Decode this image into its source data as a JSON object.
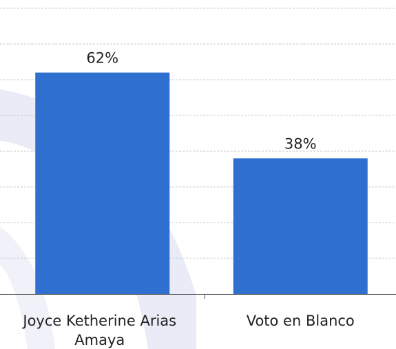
{
  "chart_data": {
    "type": "bar",
    "categories": [
      "Joyce Ketherine Arias Amaya",
      "Voto en Blanco"
    ],
    "category_lines": [
      [
        "Joyce Ketherine Arias",
        "Amaya"
      ],
      [
        "Voto en Blanco"
      ]
    ],
    "values": [
      62,
      38
    ],
    "value_labels": [
      "62%",
      "38%"
    ],
    "ylim": [
      0,
      80
    ],
    "grid": true,
    "legend": "none",
    "colors": {
      "bar": "#2f6fd0",
      "grid": "#c9c9c9",
      "text": "#222222",
      "decoration": "#e9ebf7"
    }
  }
}
